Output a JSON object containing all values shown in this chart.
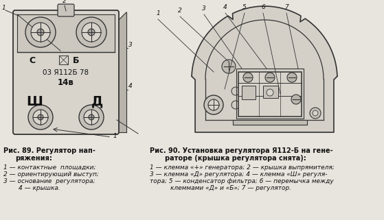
{
  "bg_color": "#e8e4de",
  "fig_width": 5.59,
  "fig_height": 3.21,
  "dpi": 100,
  "caption_left_bold": "Рис. 89. Регулятор нап-\n         ряжения:",
  "caption_left_items": "  1 — контактные  площадки;\n  2 — ориентирующий выступ;\n  3 — основание  регулятора;\n          4 — крышка.",
  "caption_right_bold": "Рис. 90. Установка регулятора Я112-Б на гене-\n        раторе (крышка регулятора снята):",
  "caption_right_items": "  1 — клемма «+» генератора; 2 — крышка выпрямителя;\n  3 — клемма «Д» регулятора; 4 — клемма «Ш» регуля-\n  тора; 5 — конденсатор фильтра; 6 — перемычка между\n          клеммами «Д» и «Б»; 7 — регулятор.",
  "text_color": "#111111",
  "line_color": "#333333",
  "body_fill": "#d8d4cc",
  "inner_fill": "#e8e4de",
  "shade_fill": "#b8b4ac"
}
